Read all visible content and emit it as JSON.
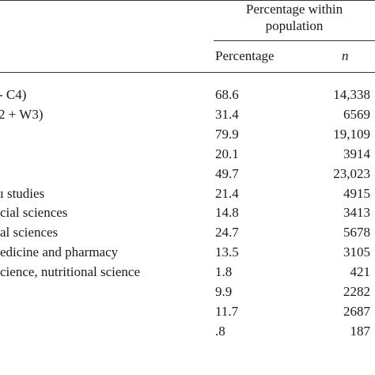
{
  "table": {
    "group_header": [
      "Percentage within",
      "population"
    ],
    "columns": {
      "percentage": "Percentage",
      "n": "n"
    },
    "rows": [
      {
        "label": "- C4)",
        "percentage": "68.6",
        "n": "14,338"
      },
      {
        "label": "2 + W3)",
        "percentage": "31.4",
        "n": "6569"
      },
      {
        "label": "",
        "percentage": "79.9",
        "n": "19,109"
      },
      {
        "label": "",
        "percentage": "20.1",
        "n": "3914"
      },
      {
        "label": "",
        "percentage": "49.7",
        "n": "23,023"
      },
      {
        "label": "ı studies",
        "percentage": "21.4",
        "n": "4915"
      },
      {
        "label": "cial sciences",
        "percentage": "14.8",
        "n": "3413"
      },
      {
        "label": "al sciences",
        "percentage": "24.7",
        "n": "5678"
      },
      {
        "label": "edicine and pharmacy",
        "percentage": "13.5",
        "n": "3105"
      },
      {
        "label": "cience, nutritional science",
        "percentage": "1.8",
        "n": "421"
      },
      {
        "label": "",
        "percentage": "9.9",
        "n": "2282"
      },
      {
        "label": "",
        "percentage": "11.7",
        "n": "2687"
      },
      {
        "label": "",
        "percentage": ".8",
        "n": "187"
      }
    ]
  }
}
